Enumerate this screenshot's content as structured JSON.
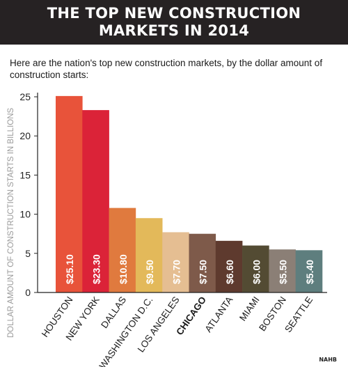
{
  "header": {
    "title_line1": "THE TOP NEW CONSTRUCTION",
    "title_line2": "MARKETS IN 2014",
    "subtitle": "Here are the nation's top new construction markets, by the dollar amount of construction starts:"
  },
  "source": "NAHB",
  "chart_data": {
    "type": "bar",
    "title": "THE TOP NEW CONSTRUCTION MARKETS IN 2014",
    "ylabel": "DOLLAR AMOUNT OF CONSTRUCTION STARTS IN BILLIONS",
    "xlabel": "",
    "ylim": [
      0,
      25
    ],
    "yticks": [
      0,
      5,
      10,
      15,
      20,
      25
    ],
    "categories": [
      "HOUSTON",
      "NEW YORK",
      "DALLAS",
      "WASHINGTON D.C.",
      "LOS ANGELES",
      "CHICAGO",
      "ATLANTA",
      "MIAMI",
      "BOSTON",
      "SEATTLE"
    ],
    "values": [
      25.1,
      23.3,
      10.8,
      9.5,
      7.7,
      7.5,
      6.6,
      6.0,
      5.5,
      5.4
    ],
    "data_labels": [
      "$25.10",
      "$23.30",
      "$10.80",
      "$9.50",
      "$7.70",
      "$7.50",
      "$6.60",
      "$6.00",
      "$5.50",
      "$5.40"
    ],
    "colors": [
      "#E8533A",
      "#DB2338",
      "#E07A3E",
      "#E3B95A",
      "#E5BE92",
      "#7E5A4A",
      "#5E3A2E",
      "#534B33",
      "#8B7F76",
      "#5E7E7E"
    ],
    "highlight_category": "CHICAGO",
    "grid": false
  }
}
